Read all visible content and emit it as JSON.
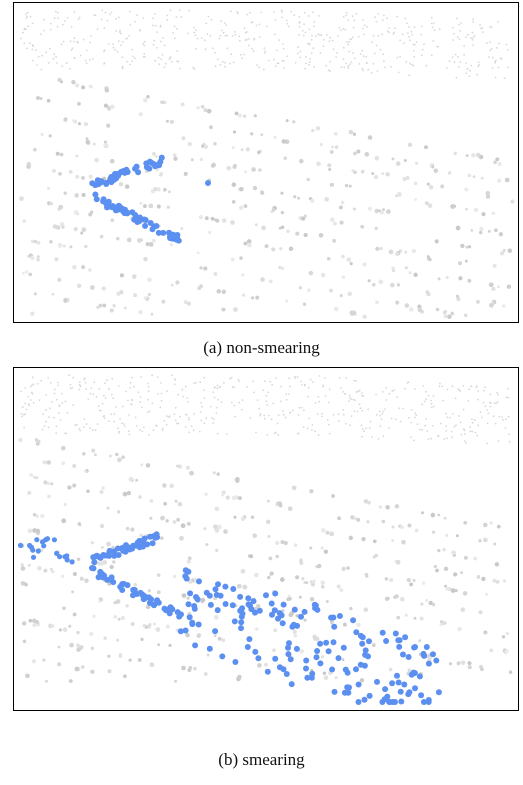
{
  "figure": {
    "panels": [
      {
        "caption": "(a) non-smearing"
      },
      {
        "caption": "(b) smearing"
      }
    ]
  }
}
